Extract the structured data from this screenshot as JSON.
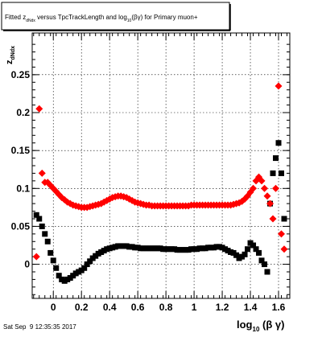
{
  "title": {
    "text_before": "Fitted z",
    "text_sub": "dNdx",
    "text_mid": " versus TpcTrackLength and log",
    "text_sub2": "10",
    "text_after": "(βγ) for Primary muon+"
  },
  "footer_timestamp": "Sat Sep  9 12:35:35 2017",
  "colors": {
    "black_series": "#000000",
    "red_series": "#ff0000",
    "frame": "#000000",
    "grid": "#000000"
  },
  "chart_data": {
    "type": "scatter",
    "title": "Fitted z_dNdx versus TpcTrackLength and log_10(βγ) for Primary muon+",
    "xlabel": "log10(βγ)",
    "ylabel": "z_dNdx",
    "xlim": [
      -0.15,
      1.68
    ],
    "ylim": [
      -0.045,
      0.305
    ],
    "grid": true,
    "x_ticks": [
      0,
      0.2,
      0.4,
      0.6,
      0.8,
      1,
      1.2,
      1.4,
      1.6
    ],
    "x_tick_labels": [
      "0",
      "0.2",
      "0.4",
      "0.6",
      "0.8",
      "1",
      "1.2",
      "1.4",
      "1.6"
    ],
    "y_ticks": [
      0,
      0.05,
      0.1,
      0.15,
      0.2,
      0.25
    ],
    "y_tick_labels": [
      "0",
      "0.05",
      "0.1",
      "0.15",
      "0.2",
      "0.25"
    ],
    "series": [
      {
        "color": "#000000",
        "x": [
          -0.12,
          -0.1,
          -0.08,
          -0.06,
          -0.04,
          -0.02,
          0.0,
          0.02,
          0.04,
          0.06,
          0.08,
          0.1,
          0.12,
          0.14,
          0.16,
          0.18,
          0.2,
          0.22,
          0.24,
          0.26,
          0.28,
          0.3,
          0.32,
          0.34,
          0.36,
          0.38,
          0.4,
          0.42,
          0.44,
          0.46,
          0.48,
          0.5,
          0.52,
          0.54,
          0.56,
          0.58,
          0.6,
          0.62,
          0.64,
          0.66,
          0.68,
          0.7,
          0.72,
          0.74,
          0.76,
          0.78,
          0.8,
          0.82,
          0.84,
          0.86,
          0.88,
          0.9,
          0.92,
          0.94,
          0.96,
          0.98,
          1.0,
          1.02,
          1.04,
          1.06,
          1.08,
          1.1,
          1.12,
          1.14,
          1.16,
          1.18,
          1.2,
          1.22,
          1.24,
          1.26,
          1.28,
          1.3,
          1.32,
          1.34,
          1.36,
          1.38,
          1.4,
          1.42,
          1.44,
          1.46,
          1.48,
          1.5,
          1.52,
          1.54,
          1.56,
          1.58,
          1.6,
          1.62,
          1.64
        ],
        "y": [
          0.065,
          0.06,
          0.05,
          0.04,
          0.03,
          0.015,
          0.005,
          -0.005,
          -0.015,
          -0.02,
          -0.022,
          -0.02,
          -0.018,
          -0.015,
          -0.012,
          -0.01,
          -0.008,
          -0.005,
          0.0,
          0.004,
          0.008,
          0.011,
          0.014,
          0.016,
          0.018,
          0.02,
          0.021,
          0.022,
          0.023,
          0.024,
          0.024,
          0.024,
          0.024,
          0.023,
          0.023,
          0.022,
          0.022,
          0.021,
          0.021,
          0.021,
          0.021,
          0.021,
          0.021,
          0.021,
          0.021,
          0.02,
          0.02,
          0.02,
          0.02,
          0.02,
          0.019,
          0.019,
          0.019,
          0.019,
          0.019,
          0.02,
          0.02,
          0.02,
          0.021,
          0.021,
          0.021,
          0.022,
          0.022,
          0.022,
          0.023,
          0.023,
          0.022,
          0.02,
          0.018,
          0.016,
          0.015,
          0.012,
          0.008,
          0.01,
          0.013,
          0.02,
          0.028,
          0.025,
          0.02,
          0.015,
          0.005,
          0.0,
          -0.01,
          0.08,
          0.12,
          0.14,
          0.16,
          0.12,
          0.06
        ]
      },
      {
        "color": "#ff0000",
        "x": [
          -0.12,
          -0.1,
          -0.08,
          -0.06,
          -0.04,
          -0.02,
          0.0,
          0.02,
          0.04,
          0.06,
          0.08,
          0.1,
          0.12,
          0.14,
          0.16,
          0.18,
          0.2,
          0.22,
          0.24,
          0.26,
          0.28,
          0.3,
          0.32,
          0.34,
          0.36,
          0.38,
          0.4,
          0.42,
          0.44,
          0.46,
          0.48,
          0.5,
          0.52,
          0.54,
          0.56,
          0.58,
          0.6,
          0.62,
          0.64,
          0.66,
          0.68,
          0.7,
          0.72,
          0.74,
          0.76,
          0.78,
          0.8,
          0.82,
          0.84,
          0.86,
          0.88,
          0.9,
          0.92,
          0.94,
          0.96,
          0.98,
          1.0,
          1.02,
          1.04,
          1.06,
          1.08,
          1.1,
          1.12,
          1.14,
          1.16,
          1.18,
          1.2,
          1.22,
          1.24,
          1.26,
          1.28,
          1.3,
          1.32,
          1.34,
          1.36,
          1.38,
          1.4,
          1.42,
          1.44,
          1.46,
          1.48,
          1.5,
          1.52,
          1.54,
          1.56,
          1.58,
          1.6,
          1.62,
          1.64
        ],
        "y": [
          0.01,
          0.205,
          0.12,
          0.108,
          0.108,
          0.104,
          0.1,
          0.096,
          0.092,
          0.088,
          0.085,
          0.082,
          0.08,
          0.078,
          0.077,
          0.076,
          0.075,
          0.075,
          0.075,
          0.076,
          0.077,
          0.078,
          0.079,
          0.08,
          0.082,
          0.084,
          0.086,
          0.088,
          0.089,
          0.09,
          0.09,
          0.089,
          0.088,
          0.086,
          0.084,
          0.082,
          0.081,
          0.08,
          0.079,
          0.078,
          0.078,
          0.077,
          0.077,
          0.077,
          0.077,
          0.077,
          0.077,
          0.077,
          0.077,
          0.077,
          0.077,
          0.077,
          0.077,
          0.077,
          0.077,
          0.078,
          0.078,
          0.078,
          0.078,
          0.078,
          0.078,
          0.078,
          0.078,
          0.078,
          0.078,
          0.078,
          0.078,
          0.078,
          0.078,
          0.078,
          0.079,
          0.08,
          0.081,
          0.083,
          0.086,
          0.09,
          0.095,
          0.1,
          0.11,
          0.115,
          0.11,
          0.1,
          0.09,
          0.08,
          0.06,
          0.1,
          0.235,
          0.04,
          0.02
        ]
      }
    ]
  }
}
